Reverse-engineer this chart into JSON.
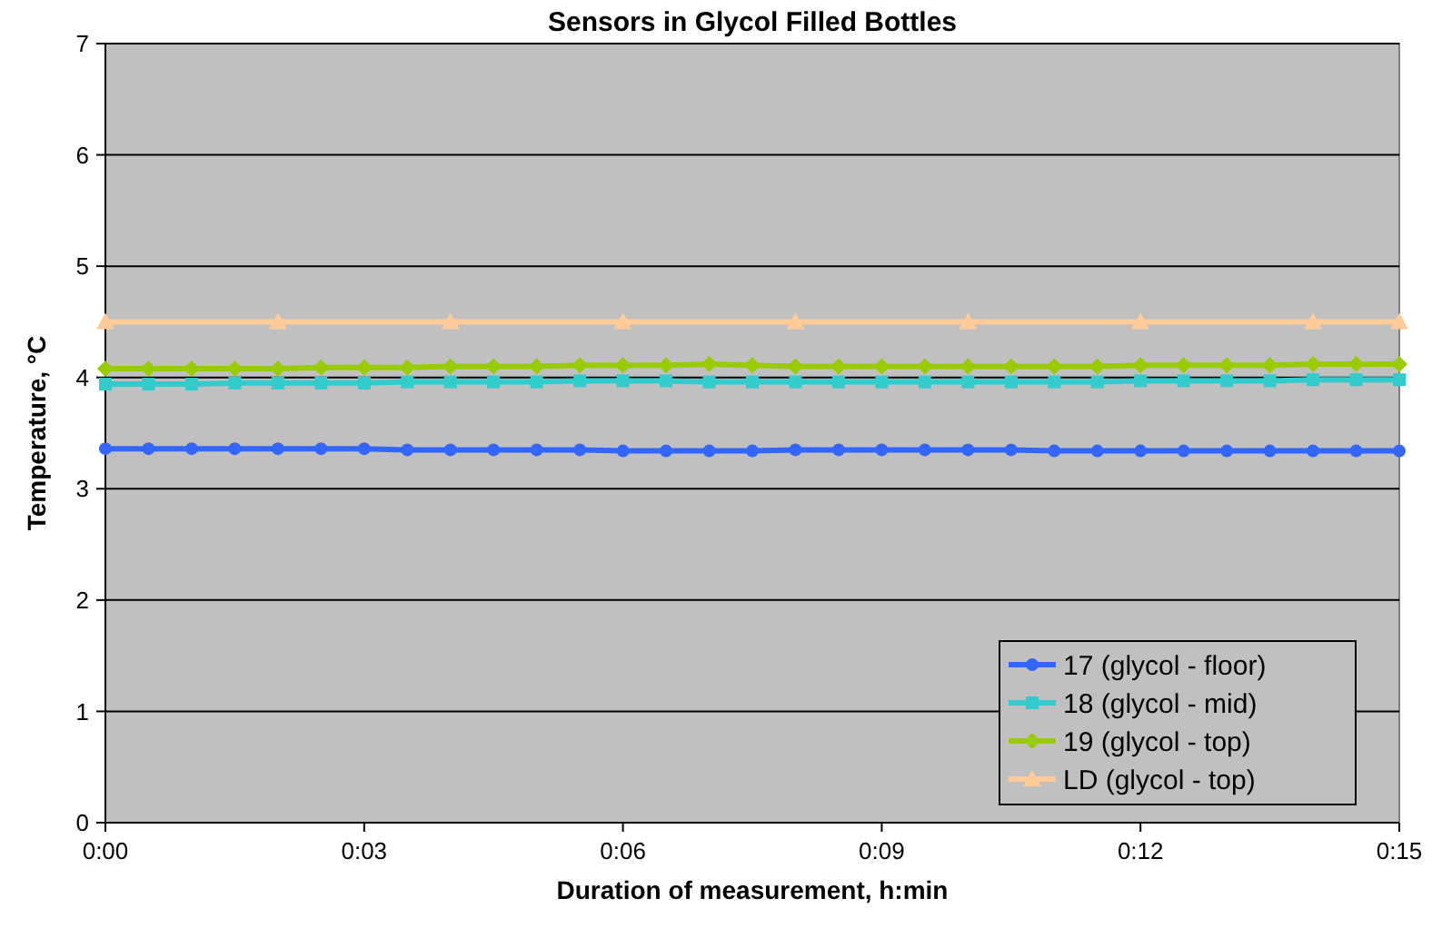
{
  "chart_data": {
    "type": "line",
    "title": "Sensors in Glycol Filled Bottles",
    "xlabel": "Duration of measurement, h:min",
    "ylabel": "Temperature, °C",
    "x": [
      0,
      0.00833,
      0.01667,
      0.025,
      0.03333,
      0.04167,
      0.05,
      0.05833,
      0.06667,
      0.075,
      0.08333,
      0.09167,
      0.1,
      0.10833,
      0.11667,
      0.125,
      0.13333,
      0.14167,
      0.15,
      0.15833,
      0.16667,
      0.175,
      0.18333,
      0.19167,
      0.2,
      0.20833,
      0.21667,
      0.225,
      0.23333,
      0.24167,
      0.25
    ],
    "series": [
      {
        "name": "17 (glycol - floor)",
        "color": "#3366ff",
        "marker": "circle",
        "values": [
          3.36,
          3.36,
          3.36,
          3.36,
          3.36,
          3.36,
          3.36,
          3.35,
          3.35,
          3.35,
          3.35,
          3.35,
          3.34,
          3.34,
          3.34,
          3.34,
          3.35,
          3.35,
          3.35,
          3.35,
          3.35,
          3.35,
          3.34,
          3.34,
          3.34,
          3.34,
          3.34,
          3.34,
          3.34,
          3.34,
          3.34
        ]
      },
      {
        "name": "18 (glycol - mid)",
        "color": "#33cccc",
        "marker": "square",
        "values": [
          3.94,
          3.94,
          3.94,
          3.95,
          3.95,
          3.95,
          3.95,
          3.96,
          3.96,
          3.96,
          3.96,
          3.97,
          3.97,
          3.97,
          3.96,
          3.96,
          3.96,
          3.96,
          3.96,
          3.96,
          3.96,
          3.96,
          3.96,
          3.96,
          3.97,
          3.97,
          3.97,
          3.97,
          3.98,
          3.98,
          3.98
        ]
      },
      {
        "name": "19 (glycol - top)",
        "color": "#99cc00",
        "marker": "diamond",
        "values": [
          4.08,
          4.08,
          4.08,
          4.08,
          4.08,
          4.09,
          4.09,
          4.09,
          4.1,
          4.1,
          4.1,
          4.11,
          4.11,
          4.11,
          4.12,
          4.11,
          4.1,
          4.1,
          4.1,
          4.1,
          4.1,
          4.1,
          4.1,
          4.1,
          4.11,
          4.11,
          4.11,
          4.11,
          4.12,
          4.12,
          4.12
        ]
      },
      {
        "name": "LD (glycol - top)",
        "color": "#ffcc99",
        "marker": "triangle",
        "x": [
          0,
          0.03333,
          0.06667,
          0.1,
          0.13333,
          0.16667,
          0.2,
          0.23333,
          0.25
        ],
        "values": [
          4.5,
          4.5,
          4.5,
          4.5,
          4.5,
          4.5,
          4.5,
          4.5,
          4.5
        ]
      }
    ],
    "xlim": [
      0,
      0.25
    ],
    "xticks": [
      {
        "value": 0,
        "label": "0:00"
      },
      {
        "value": 0.05,
        "label": "0:03"
      },
      {
        "value": 0.1,
        "label": "0:06"
      },
      {
        "value": 0.15,
        "label": "0:09"
      },
      {
        "value": 0.2,
        "label": "0:12"
      },
      {
        "value": 0.25,
        "label": "0:15"
      }
    ],
    "ylim": [
      0,
      7
    ],
    "yticks": [
      0,
      1,
      2,
      3,
      4,
      5,
      6,
      7
    ],
    "grid": "y",
    "legend": "bottom right",
    "line_style": "solid"
  }
}
